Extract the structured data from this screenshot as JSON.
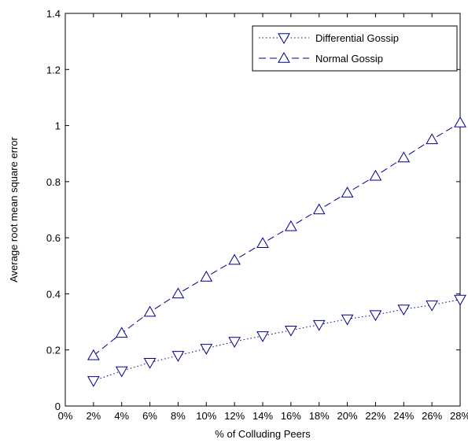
{
  "chart_data": {
    "type": "line",
    "xlabel": "% of Colluding Peers",
    "ylabel": "Average root mean square error",
    "x_ticks": [
      "0%",
      "2%",
      "4%",
      "6%",
      "8%",
      "10%",
      "12%",
      "14%",
      "16%",
      "18%",
      "20%",
      "22%",
      "24%",
      "26%",
      "28%"
    ],
    "y_ticks": [
      "0",
      "0.2",
      "0.4",
      "0.6",
      "0.8",
      "1",
      "1.2",
      "1.4"
    ],
    "xlim": [
      0,
      28
    ],
    "ylim": [
      0,
      1.4
    ],
    "grid": false,
    "legend_position": "top-right",
    "series": [
      {
        "name": "Differential Gossip",
        "marker": "triangle-down",
        "line_style": "dotted",
        "color": "#00008B",
        "x": [
          2,
          4,
          6,
          8,
          10,
          12,
          14,
          16,
          18,
          20,
          22,
          24,
          26,
          28
        ],
        "values": [
          0.09,
          0.125,
          0.155,
          0.18,
          0.205,
          0.23,
          0.25,
          0.27,
          0.29,
          0.31,
          0.325,
          0.345,
          0.36,
          0.38
        ]
      },
      {
        "name": "Normal Gossip",
        "marker": "triangle-up",
        "line_style": "dashed",
        "color": "#00008B",
        "x": [
          2,
          4,
          6,
          8,
          10,
          12,
          14,
          16,
          18,
          20,
          22,
          24,
          26,
          28
        ],
        "values": [
          0.18,
          0.26,
          0.335,
          0.4,
          0.46,
          0.52,
          0.58,
          0.64,
          0.7,
          0.76,
          0.82,
          0.885,
          0.95,
          1.01
        ]
      }
    ]
  }
}
